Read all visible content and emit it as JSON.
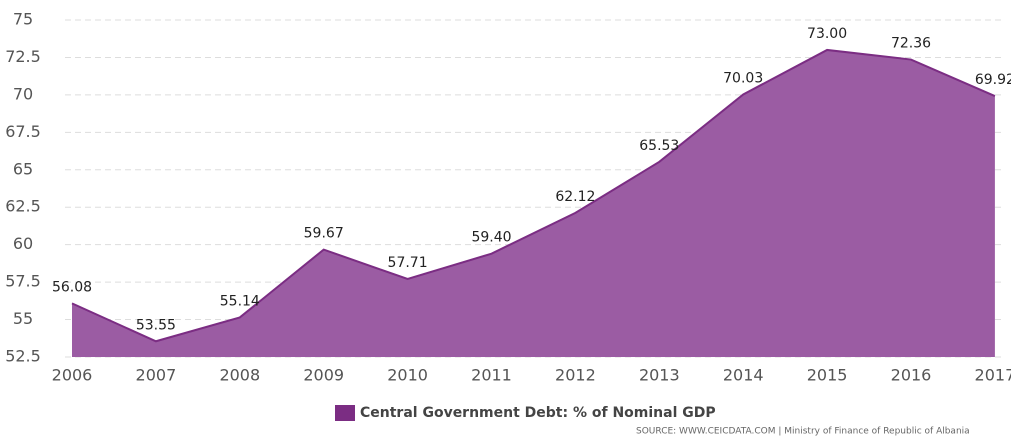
{
  "chart_data": {
    "type": "area",
    "categories": [
      "2006",
      "2007",
      "2008",
      "2009",
      "2010",
      "2011",
      "2012",
      "2013",
      "2014",
      "2015",
      "2016",
      "2017"
    ],
    "series": [
      {
        "name": "Central Government Debt: % of Nominal GDP",
        "color": "#7b2d83",
        "fill": "#9b5ca3",
        "values": [
          56.08,
          53.55,
          55.14,
          59.67,
          57.71,
          59.4,
          62.12,
          65.53,
          70.03,
          73.0,
          72.36,
          69.92
        ],
        "value_labels": [
          "56.08",
          "53.55",
          "55.14",
          "59.67",
          "57.71",
          "59.40",
          "62.12",
          "65.53",
          "70.03",
          "73.00",
          "72.36",
          "69.92"
        ]
      }
    ],
    "ylim": [
      52.5,
      75
    ],
    "yticks": [
      52.5,
      55,
      57.5,
      60,
      62.5,
      65,
      67.5,
      70,
      72.5,
      75
    ],
    "grid": true,
    "legend": "bottom",
    "source": "SOURCE: WWW.CEICDATA.COM | Ministry of Finance of Republic of Albania"
  }
}
